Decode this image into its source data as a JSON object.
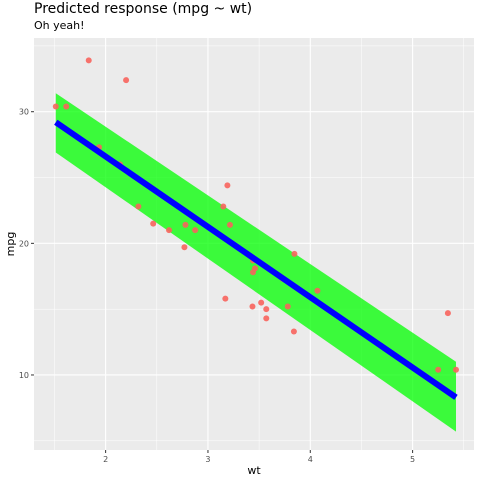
{
  "chart_data": {
    "type": "scatter",
    "title": "Predicted response (mpg ~ wt)",
    "subtitle": "Oh yeah!",
    "xlabel": "wt",
    "ylabel": "mpg",
    "xlim": [
      1.3,
      5.6
    ],
    "ylim": [
      4.3,
      35.6
    ],
    "x_ticks": [
      2,
      3,
      4,
      5
    ],
    "y_ticks": [
      10,
      20,
      30
    ],
    "grid": true,
    "points": [
      {
        "x": 1.513,
        "y": 30.4
      },
      {
        "x": 1.615,
        "y": 30.4
      },
      {
        "x": 1.835,
        "y": 33.9
      },
      {
        "x": 1.935,
        "y": 27.3
      },
      {
        "x": 2.14,
        "y": 26.0
      },
      {
        "x": 2.2,
        "y": 32.4
      },
      {
        "x": 2.32,
        "y": 22.8
      },
      {
        "x": 2.465,
        "y": 21.5
      },
      {
        "x": 2.62,
        "y": 21.0
      },
      {
        "x": 2.77,
        "y": 19.7
      },
      {
        "x": 2.78,
        "y": 21.4
      },
      {
        "x": 2.875,
        "y": 21.0
      },
      {
        "x": 3.15,
        "y": 22.8
      },
      {
        "x": 3.17,
        "y": 15.8
      },
      {
        "x": 3.19,
        "y": 24.4
      },
      {
        "x": 3.215,
        "y": 21.4
      },
      {
        "x": 3.435,
        "y": 15.2
      },
      {
        "x": 3.44,
        "y": 18.7
      },
      {
        "x": 3.44,
        "y": 17.8
      },
      {
        "x": 3.46,
        "y": 18.1
      },
      {
        "x": 3.52,
        "y": 15.5
      },
      {
        "x": 3.57,
        "y": 15.0
      },
      {
        "x": 3.57,
        "y": 14.3
      },
      {
        "x": 3.73,
        "y": 17.3
      },
      {
        "x": 3.78,
        "y": 15.2
      },
      {
        "x": 3.84,
        "y": 13.3
      },
      {
        "x": 3.845,
        "y": 19.2
      },
      {
        "x": 4.07,
        "y": 16.4
      },
      {
        "x": 5.25,
        "y": 10.4
      },
      {
        "x": 5.345,
        "y": 14.7
      },
      {
        "x": 5.424,
        "y": 10.4
      }
    ],
    "fit": {
      "x": [
        1.513,
        5.424
      ],
      "y": [
        29.2,
        8.3
      ],
      "lower": [
        26.9,
        5.7
      ],
      "upper": [
        31.4,
        11.0
      ]
    },
    "colors": {
      "points": "#f8645d",
      "fit_line": "#0000ff",
      "ribbon": "#00ff00",
      "panel": "#ebebeb",
      "grid": "#ffffff"
    }
  }
}
